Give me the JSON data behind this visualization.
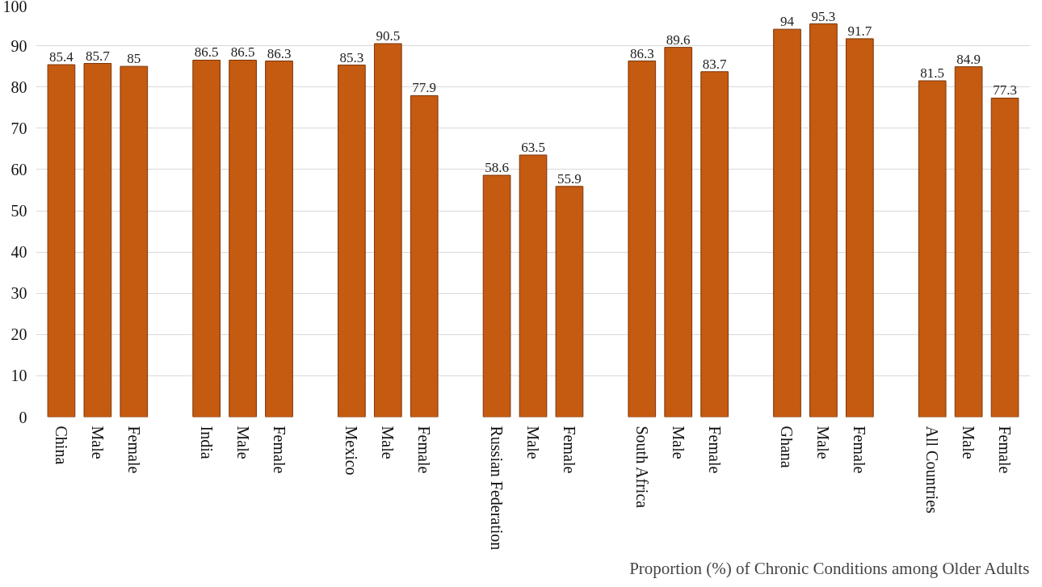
{
  "chart_data": {
    "type": "bar",
    "title": "Proportion (%) of Chronic Conditions among Older Adults",
    "categories": [
      "China",
      "Male",
      "Female",
      "India",
      "Male",
      "Female",
      "Mexico",
      "Male",
      "Female",
      "Russian Federation",
      "Male",
      "Female",
      "South Africa",
      "Male",
      "Female",
      "Ghana",
      "Male",
      "Female",
      "All Countries",
      "Male",
      "Female"
    ],
    "values": [
      85.4,
      85.7,
      85,
      86.5,
      86.5,
      86.3,
      85.3,
      90.5,
      77.9,
      58.6,
      63.5,
      55.9,
      86.3,
      89.6,
      83.7,
      94,
      95.3,
      91.7,
      81.5,
      84.9,
      77.3
    ],
    "color": "#c55a11",
    "ylim": [
      0,
      100
    ],
    "yticks": [
      0,
      10,
      20,
      30,
      40,
      50,
      60,
      70,
      80,
      90,
      100
    ],
    "grid": "y",
    "data_labels": true
  }
}
